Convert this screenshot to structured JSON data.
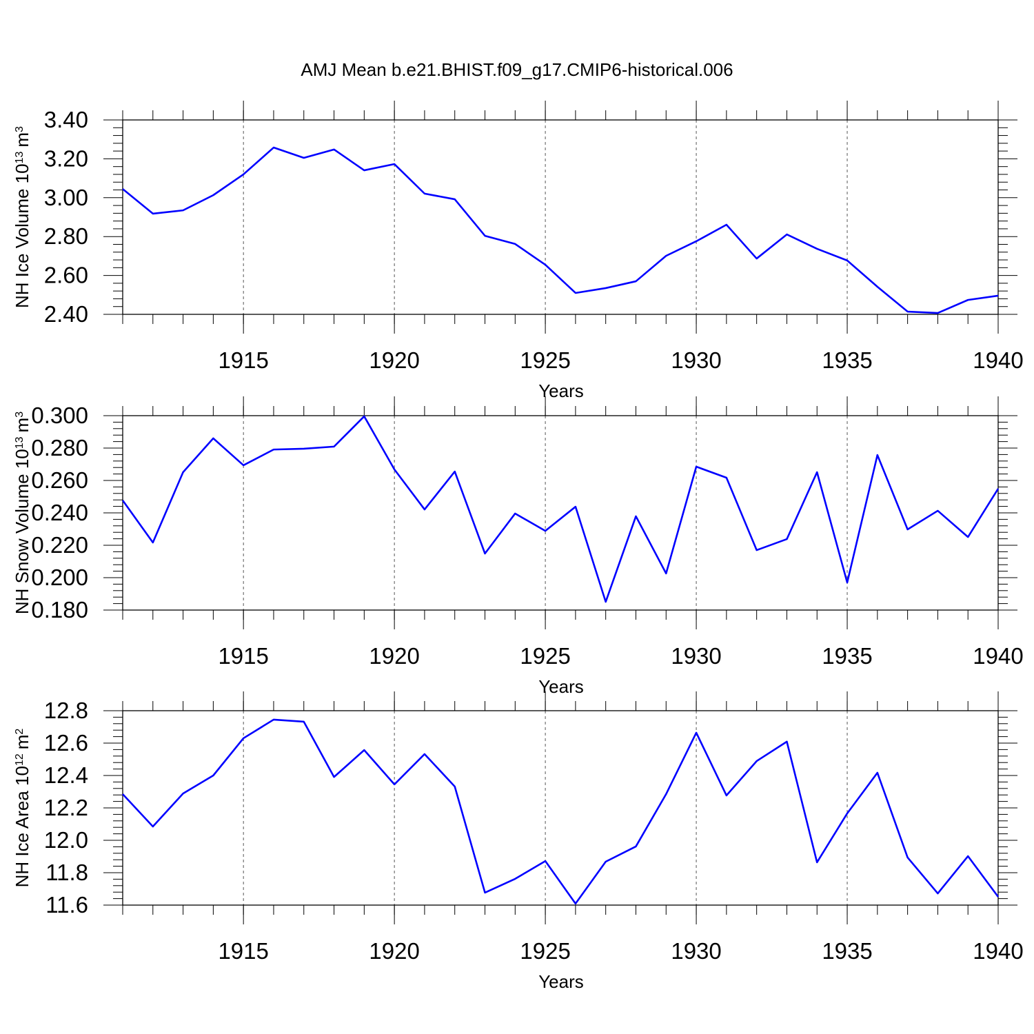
{
  "title": "AMJ Mean b.e21.BHIST.f09_g17.CMIP6-historical.006",
  "chart_data": [
    {
      "type": "line",
      "ylabel_parts": [
        "NH Ice Volume 10",
        "13",
        "m",
        "3"
      ],
      "xlabel": "Years",
      "color": "#0000ff",
      "grid": true,
      "x": [
        1911,
        1912,
        1913,
        1914,
        1915,
        1916,
        1917,
        1918,
        1919,
        1920,
        1921,
        1922,
        1923,
        1924,
        1925,
        1926,
        1927,
        1928,
        1929,
        1930,
        1931,
        1932,
        1933,
        1934,
        1935,
        1936,
        1937,
        1938,
        1939,
        1940
      ],
      "values": [
        3.045,
        2.918,
        2.935,
        3.013,
        3.12,
        3.258,
        3.205,
        3.248,
        3.141,
        3.173,
        3.021,
        2.992,
        2.804,
        2.762,
        2.655,
        2.51,
        2.535,
        2.57,
        2.701,
        2.776,
        2.861,
        2.687,
        2.811,
        2.737,
        2.677,
        2.542,
        2.414,
        2.407,
        2.474,
        2.496
      ],
      "xlim": [
        1911,
        1940
      ],
      "xticks": [
        1915,
        1920,
        1925,
        1930,
        1935,
        1940
      ],
      "ylim": [
        2.4,
        3.4
      ],
      "yticks": [
        {
          "value": 2.4,
          "label": "2.40"
        },
        {
          "value": 2.6,
          "label": "2.60"
        },
        {
          "value": 2.8,
          "label": "2.80"
        },
        {
          "value": 3.0,
          "label": "3.00"
        },
        {
          "value": 3.2,
          "label": "3.20"
        },
        {
          "value": 3.4,
          "label": "3.40"
        }
      ]
    },
    {
      "type": "line",
      "ylabel_parts": [
        "NH Snow Volume 10",
        "13",
        "m",
        "3"
      ],
      "xlabel": "Years",
      "color": "#0000ff",
      "grid": true,
      "x": [
        1911,
        1912,
        1913,
        1914,
        1915,
        1916,
        1917,
        1918,
        1919,
        1920,
        1921,
        1922,
        1923,
        1924,
        1925,
        1926,
        1927,
        1928,
        1929,
        1930,
        1931,
        1932,
        1933,
        1934,
        1935,
        1936,
        1937,
        1938,
        1939,
        1940
      ],
      "values": [
        0.2477,
        0.2217,
        0.2651,
        0.286,
        0.2694,
        0.2791,
        0.2796,
        0.2809,
        0.2996,
        0.2668,
        0.2421,
        0.2655,
        0.2149,
        0.2396,
        0.2289,
        0.2438,
        0.1851,
        0.2379,
        0.2026,
        0.2685,
        0.2617,
        0.217,
        0.2238,
        0.2651,
        0.197,
        0.2757,
        0.2298,
        0.2413,
        0.2251,
        0.2549
      ],
      "xlim": [
        1911,
        1940
      ],
      "xticks": [
        1915,
        1920,
        1925,
        1930,
        1935,
        1940
      ],
      "ylim": [
        0.18,
        0.3
      ],
      "yticks": [
        {
          "value": 0.18,
          "label": "0.180"
        },
        {
          "value": 0.2,
          "label": "0.200"
        },
        {
          "value": 0.22,
          "label": "0.220"
        },
        {
          "value": 0.24,
          "label": "0.240"
        },
        {
          "value": 0.26,
          "label": "0.260"
        },
        {
          "value": 0.28,
          "label": "0.280"
        },
        {
          "value": 0.3,
          "label": "0.300"
        }
      ]
    },
    {
      "type": "line",
      "ylabel_parts": [
        "NH Ice Area 10",
        "12",
        "m",
        "2"
      ],
      "xlabel": "Years",
      "color": "#0000ff",
      "grid": true,
      "x": [
        1911,
        1912,
        1913,
        1914,
        1915,
        1916,
        1917,
        1918,
        1919,
        1920,
        1921,
        1922,
        1923,
        1924,
        1925,
        1926,
        1927,
        1928,
        1929,
        1930,
        1931,
        1932,
        1933,
        1934,
        1935,
        1936,
        1937,
        1938,
        1939,
        1940
      ],
      "values": [
        12.285,
        12.085,
        12.289,
        12.4,
        12.63,
        12.745,
        12.732,
        12.391,
        12.557,
        12.345,
        12.532,
        12.332,
        11.677,
        11.762,
        11.872,
        11.609,
        11.868,
        11.962,
        12.285,
        12.664,
        12.277,
        12.489,
        12.609,
        11.864,
        12.166,
        12.417,
        11.894,
        11.672,
        11.902,
        11.651
      ],
      "xlim": [
        1911,
        1940
      ],
      "xticks": [
        1915,
        1920,
        1925,
        1930,
        1935,
        1940
      ],
      "ylim": [
        11.6,
        12.8
      ],
      "yticks": [
        11.6,
        11.8,
        {
          "value": 12.0,
          "label": "12.0"
        },
        12.2,
        12.4,
        12.6,
        12.8
      ]
    }
  ]
}
